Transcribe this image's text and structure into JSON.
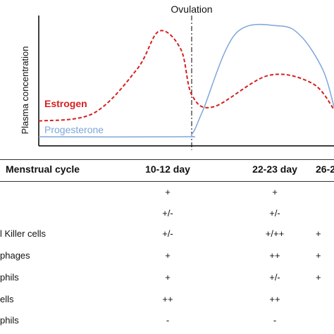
{
  "chart_data": {
    "type": "line",
    "title": "Ovulation",
    "ylabel": "Plasma concentration",
    "xlabel": "",
    "x_ticks": [],
    "y_ticks": [],
    "ovulation_marker": "Ovulation",
    "series": [
      {
        "name": "Estrogen",
        "color": "#d62020",
        "style": "dashed",
        "x": [
          0,
          5,
          9,
          11,
          13,
          14,
          16,
          21,
          25,
          27
        ],
        "y": [
          0.19,
          0.25,
          0.59,
          0.88,
          0.74,
          0.39,
          0.3,
          0.54,
          0.48,
          0.28
        ]
      },
      {
        "name": "Progesterone",
        "color": "#7ea6d8",
        "style": "solid",
        "x": [
          0,
          13,
          14,
          15,
          18,
          22,
          24,
          26,
          27
        ],
        "y": [
          0.07,
          0.07,
          0.09,
          0.27,
          0.86,
          0.92,
          0.84,
          0.58,
          0.3
        ]
      }
    ]
  },
  "table": {
    "header": [
      "Menstrual cycle",
      "10-12 day",
      "22-23 day",
      "26-2"
    ],
    "rows": [
      {
        "label": "",
        "values": [
          "+",
          "+",
          ""
        ]
      },
      {
        "label": "",
        "values": [
          "+/-",
          "+/-",
          ""
        ]
      },
      {
        "label": "l Killer cells",
        "values": [
          "+/-",
          "+/++",
          "+"
        ]
      },
      {
        "label": "phages",
        "values": [
          "+",
          "++",
          "+"
        ]
      },
      {
        "label": "phils",
        "values": [
          "+",
          "+/-",
          "+"
        ]
      },
      {
        "label": "ells",
        "values": [
          "++",
          "++",
          ""
        ]
      },
      {
        "label": "phils",
        "values": [
          "-",
          "-",
          ""
        ]
      }
    ]
  }
}
